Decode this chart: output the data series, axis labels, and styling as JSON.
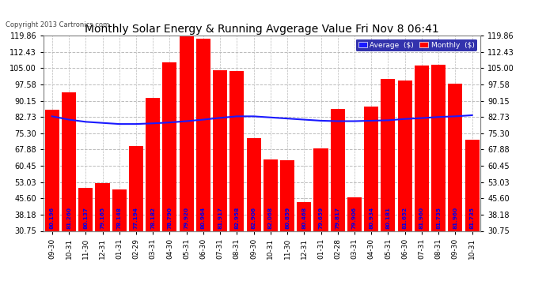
{
  "title": "Monthly Solar Energy & Running Avgerage Value Fri Nov 8 06:41",
  "copyright": "Copyright 2013 Cartronics.com",
  "categories": [
    "09-30",
    "10-31",
    "11-30",
    "12-31",
    "01-31",
    "02-29",
    "03-31",
    "04-30",
    "05-31",
    "06-30",
    "07-31",
    "08-31",
    "09-30",
    "10-31",
    "11-30",
    "12-31",
    "01-31",
    "02-28",
    "03-31",
    "04-30",
    "05-31",
    "06-30",
    "07-31",
    "08-31",
    "09-30",
    "10-31"
  ],
  "bar_values": [
    86.0,
    94.0,
    50.5,
    52.5,
    49.5,
    69.5,
    91.5,
    107.5,
    119.5,
    118.5,
    104.0,
    103.5,
    73.0,
    63.5,
    63.0,
    44.0,
    68.5,
    86.5,
    46.0,
    87.5,
    100.0,
    99.5,
    106.0,
    106.5,
    98.0,
    72.5
  ],
  "bar_labels": [
    "80.196",
    "81.260",
    "80.137",
    "79.165",
    "78.148",
    "77.194",
    "78.182",
    "78.790",
    "79.920",
    "80.964",
    "81.917",
    "82.958",
    "82.906",
    "82.068",
    "80.859",
    "80.468",
    "79.659",
    "79.817",
    "79.906",
    "80.934",
    "80.181",
    "81.652",
    "81.960",
    "81.735",
    "81.960",
    "81.735"
  ],
  "avg_values": [
    83.0,
    81.5,
    80.5,
    80.0,
    79.5,
    79.5,
    79.8,
    80.2,
    80.8,
    81.5,
    82.3,
    83.0,
    83.0,
    82.5,
    82.0,
    81.5,
    81.0,
    80.8,
    80.8,
    81.0,
    81.2,
    81.8,
    82.2,
    82.7,
    83.0,
    83.5
  ],
  "ylim_min": 30.75,
  "ylim_max": 119.86,
  "yticks": [
    30.75,
    38.18,
    45.6,
    53.03,
    60.45,
    67.88,
    75.3,
    82.73,
    90.15,
    97.58,
    105.0,
    112.43,
    119.86
  ],
  "bar_color": "#ff0000",
  "avg_color": "#1a1aff",
  "background_color": "#ffffff",
  "plot_bg_color": "#ffffff",
  "title_color": "#000000",
  "title_fontsize": 10,
  "bar_label_color": "#0000ee",
  "grid_color": "#bbbbbb",
  "legend_avg_label": "Average  ($)",
  "legend_monthly_label": "Monthly  ($)",
  "legend_bg_color": "#000099",
  "legend_text_color": "#ffffff"
}
